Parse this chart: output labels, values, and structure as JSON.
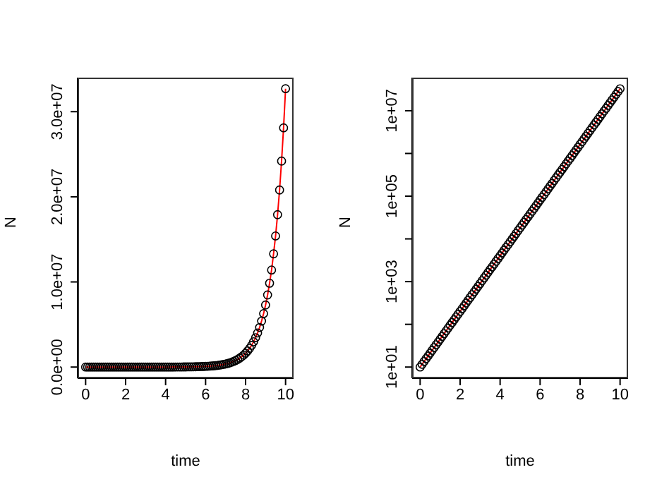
{
  "chart_data": [
    {
      "type": "scatter",
      "xlabel": "time",
      "ylabel": "N",
      "x": [
        0,
        0.1,
        0.2,
        0.3,
        0.4,
        0.5,
        0.6,
        0.7,
        0.8,
        0.9,
        1,
        1.1,
        1.2,
        1.3,
        1.4,
        1.5,
        1.6,
        1.7,
        1.8,
        1.9,
        2,
        2.1,
        2.2,
        2.3,
        2.4,
        2.5,
        2.6,
        2.7,
        2.8,
        2.9,
        3,
        3.1,
        3.2,
        3.3,
        3.4,
        3.5,
        3.6,
        3.7,
        3.8,
        3.9,
        4,
        4.1,
        4.2,
        4.3,
        4.4,
        4.5,
        4.6,
        4.7,
        4.8,
        4.9,
        5,
        5.1,
        5.2,
        5.3,
        5.4,
        5.5,
        5.6,
        5.7,
        5.8,
        5.9,
        6,
        6.1,
        6.2,
        6.3,
        6.4,
        6.5,
        6.6,
        6.7,
        6.8,
        6.9,
        7,
        7.1,
        7.2,
        7.3,
        7.4,
        7.5,
        7.6,
        7.7,
        7.8,
        7.9,
        8,
        8.1,
        8.2,
        8.3,
        8.4,
        8.5,
        8.6,
        8.7,
        8.8,
        8.9,
        9,
        9.1,
        9.2,
        9.3,
        9.4,
        9.5,
        9.6,
        9.7,
        9.8,
        9.9,
        10
      ],
      "series": [
        {
          "type": "scatter",
          "marker": "circle",
          "color": "#000000",
          "values": [
            10,
            11.6,
            13.5,
            15.7,
            18.2,
            21.2,
            24.6,
            28.6,
            33.2,
            38.6,
            44.8,
            52.1,
            60.5,
            70.3,
            81.7,
            94.9,
            110,
            128,
            149,
            173,
            201,
            233,
            271,
            315,
            366,
            425,
            494,
            574,
            667,
            775,
            900,
            1050,
            1220,
            1410,
            1640,
            1910,
            2210,
            2570,
            2990,
            3470,
            4030,
            4690,
            5450,
            6330,
            7350,
            8540,
            9920,
            11500,
            13400,
            15600,
            18100,
            21000,
            24400,
            28400,
            32900,
            38300,
            44500,
            51700,
            60000,
            69700,
            81000,
            94100,
            109000,
            127000,
            148000,
            172000,
            199000,
            232000,
            269000,
            313000,
            363000,
            422000,
            490000,
            570000,
            662000,
            769000,
            893000,
            1040000,
            1210000,
            1400000,
            1630000,
            1890000,
            2200000,
            2550000,
            2970000,
            3450000,
            4000000,
            4650000,
            5400000,
            6280000,
            7290000,
            8470000,
            9850000,
            11400000,
            13300000,
            15400000,
            17900000,
            20800000,
            24200000,
            28100000,
            32700000
          ]
        },
        {
          "type": "line",
          "line_style": "solid",
          "color": "#ff0000",
          "values": [
            10,
            11.6,
            13.5,
            15.7,
            18.2,
            21.2,
            24.6,
            28.6,
            33.2,
            38.6,
            44.8,
            52.1,
            60.5,
            70.3,
            81.7,
            94.9,
            110,
            128,
            149,
            173,
            201,
            233,
            271,
            315,
            366,
            425,
            494,
            574,
            667,
            775,
            900,
            1050,
            1220,
            1410,
            1640,
            1910,
            2210,
            2570,
            2990,
            3470,
            4030,
            4690,
            5450,
            6330,
            7350,
            8540,
            9920,
            11500,
            13400,
            15600,
            18100,
            21000,
            24400,
            28400,
            32900,
            38300,
            44500,
            51700,
            60000,
            69700,
            81000,
            94100,
            109000,
            127000,
            148000,
            172000,
            199000,
            232000,
            269000,
            313000,
            363000,
            422000,
            490000,
            570000,
            662000,
            769000,
            893000,
            1040000,
            1210000,
            1400000,
            1630000,
            1890000,
            2200000,
            2550000,
            2970000,
            3450000,
            4000000,
            4650000,
            5400000,
            6280000,
            7290000,
            8470000,
            9850000,
            11400000,
            13300000,
            15400000,
            17900000,
            20800000,
            24200000,
            28100000,
            32700000
          ]
        }
      ],
      "xlim": [
        -0.4,
        10.4
      ],
      "xticks": [
        0,
        2,
        4,
        6,
        8,
        10
      ],
      "ylim": [
        -1310000,
        34000000
      ],
      "yticks": [
        {
          "value": 0,
          "label": "0.0e+00"
        },
        {
          "value": 10000000,
          "label": "1.0e+07"
        },
        {
          "value": 20000000,
          "label": "2.0e+07"
        },
        {
          "value": 30000000,
          "label": "3.0e+07"
        }
      ]
    },
    {
      "type": "scatter",
      "xlabel": "time",
      "ylabel": "N",
      "log": true,
      "x": [
        0,
        0.1,
        0.2,
        0.3,
        0.4,
        0.5,
        0.6,
        0.7,
        0.8,
        0.9,
        1,
        1.1,
        1.2,
        1.3,
        1.4,
        1.5,
        1.6,
        1.7,
        1.8,
        1.9,
        2,
        2.1,
        2.2,
        2.3,
        2.4,
        2.5,
        2.6,
        2.7,
        2.8,
        2.9,
        3,
        3.1,
        3.2,
        3.3,
        3.4,
        3.5,
        3.6,
        3.7,
        3.8,
        3.9,
        4,
        4.1,
        4.2,
        4.3,
        4.4,
        4.5,
        4.6,
        4.7,
        4.8,
        4.9,
        5,
        5.1,
        5.2,
        5.3,
        5.4,
        5.5,
        5.6,
        5.7,
        5.8,
        5.9,
        6,
        6.1,
        6.2,
        6.3,
        6.4,
        6.5,
        6.6,
        6.7,
        6.8,
        6.9,
        7,
        7.1,
        7.2,
        7.3,
        7.4,
        7.5,
        7.6,
        7.7,
        7.8,
        7.9,
        8,
        8.1,
        8.2,
        8.3,
        8.4,
        8.5,
        8.6,
        8.7,
        8.8,
        8.9,
        9,
        9.1,
        9.2,
        9.3,
        9.4,
        9.5,
        9.6,
        9.7,
        9.8,
        9.9,
        10
      ],
      "series": [
        {
          "type": "scatter",
          "marker": "circle",
          "color": "#000000",
          "values": [
            10,
            11.6,
            13.5,
            15.7,
            18.2,
            21.2,
            24.6,
            28.6,
            33.2,
            38.6,
            44.8,
            52.1,
            60.5,
            70.3,
            81.7,
            94.9,
            110,
            128,
            149,
            173,
            201,
            233,
            271,
            315,
            366,
            425,
            494,
            574,
            667,
            775,
            900,
            1050,
            1220,
            1410,
            1640,
            1910,
            2210,
            2570,
            2990,
            3470,
            4030,
            4690,
            5450,
            6330,
            7350,
            8540,
            9920,
            11500,
            13400,
            15600,
            18100,
            21000,
            24400,
            28400,
            32900,
            38300,
            44500,
            51700,
            60000,
            69700,
            81000,
            94100,
            109000,
            127000,
            148000,
            172000,
            199000,
            232000,
            269000,
            313000,
            363000,
            422000,
            490000,
            570000,
            662000,
            769000,
            893000,
            1040000,
            1210000,
            1400000,
            1630000,
            1890000,
            2200000,
            2550000,
            2970000,
            3450000,
            4000000,
            4650000,
            5400000,
            6280000,
            7290000,
            8470000,
            9850000,
            11400000,
            13300000,
            15400000,
            17900000,
            20800000,
            24200000,
            28100000,
            32700000
          ]
        },
        {
          "type": "line",
          "line_style": "solid",
          "color": "#ff0000",
          "values": [
            10,
            11.6,
            13.5,
            15.7,
            18.2,
            21.2,
            24.6,
            28.6,
            33.2,
            38.6,
            44.8,
            52.1,
            60.5,
            70.3,
            81.7,
            94.9,
            110,
            128,
            149,
            173,
            201,
            233,
            271,
            315,
            366,
            425,
            494,
            574,
            667,
            775,
            900,
            1050,
            1220,
            1410,
            1640,
            1910,
            2210,
            2570,
            2990,
            3470,
            4030,
            4690,
            5450,
            6330,
            7350,
            8540,
            9920,
            11500,
            13400,
            15600,
            18100,
            21000,
            24400,
            28400,
            32900,
            38300,
            44500,
            51700,
            60000,
            69700,
            81000,
            94100,
            109000,
            127000,
            148000,
            172000,
            199000,
            232000,
            269000,
            313000,
            363000,
            422000,
            490000,
            570000,
            662000,
            769000,
            893000,
            1040000,
            1210000,
            1400000,
            1630000,
            1890000,
            2200000,
            2550000,
            2970000,
            3450000,
            4000000,
            4650000,
            5400000,
            6280000,
            7290000,
            8470000,
            9850000,
            11400000,
            13300000,
            15400000,
            17900000,
            20800000,
            24200000,
            28100000,
            32700000
          ]
        }
      ],
      "xlim": [
        -0.4,
        10.4
      ],
      "xticks": [
        0,
        2,
        4,
        6,
        8,
        10
      ],
      "ylim": [
        5.48,
        59600000
      ],
      "yticks": [
        {
          "value": 10,
          "label": "1e+01"
        },
        {
          "value": 100,
          "label": null
        },
        {
          "value": 1000,
          "label": "1e+03"
        },
        {
          "value": 10000,
          "label": null
        },
        {
          "value": 100000,
          "label": "1e+05"
        },
        {
          "value": 1000000,
          "label": null
        },
        {
          "value": 10000000,
          "label": "1e+07"
        }
      ]
    }
  ]
}
